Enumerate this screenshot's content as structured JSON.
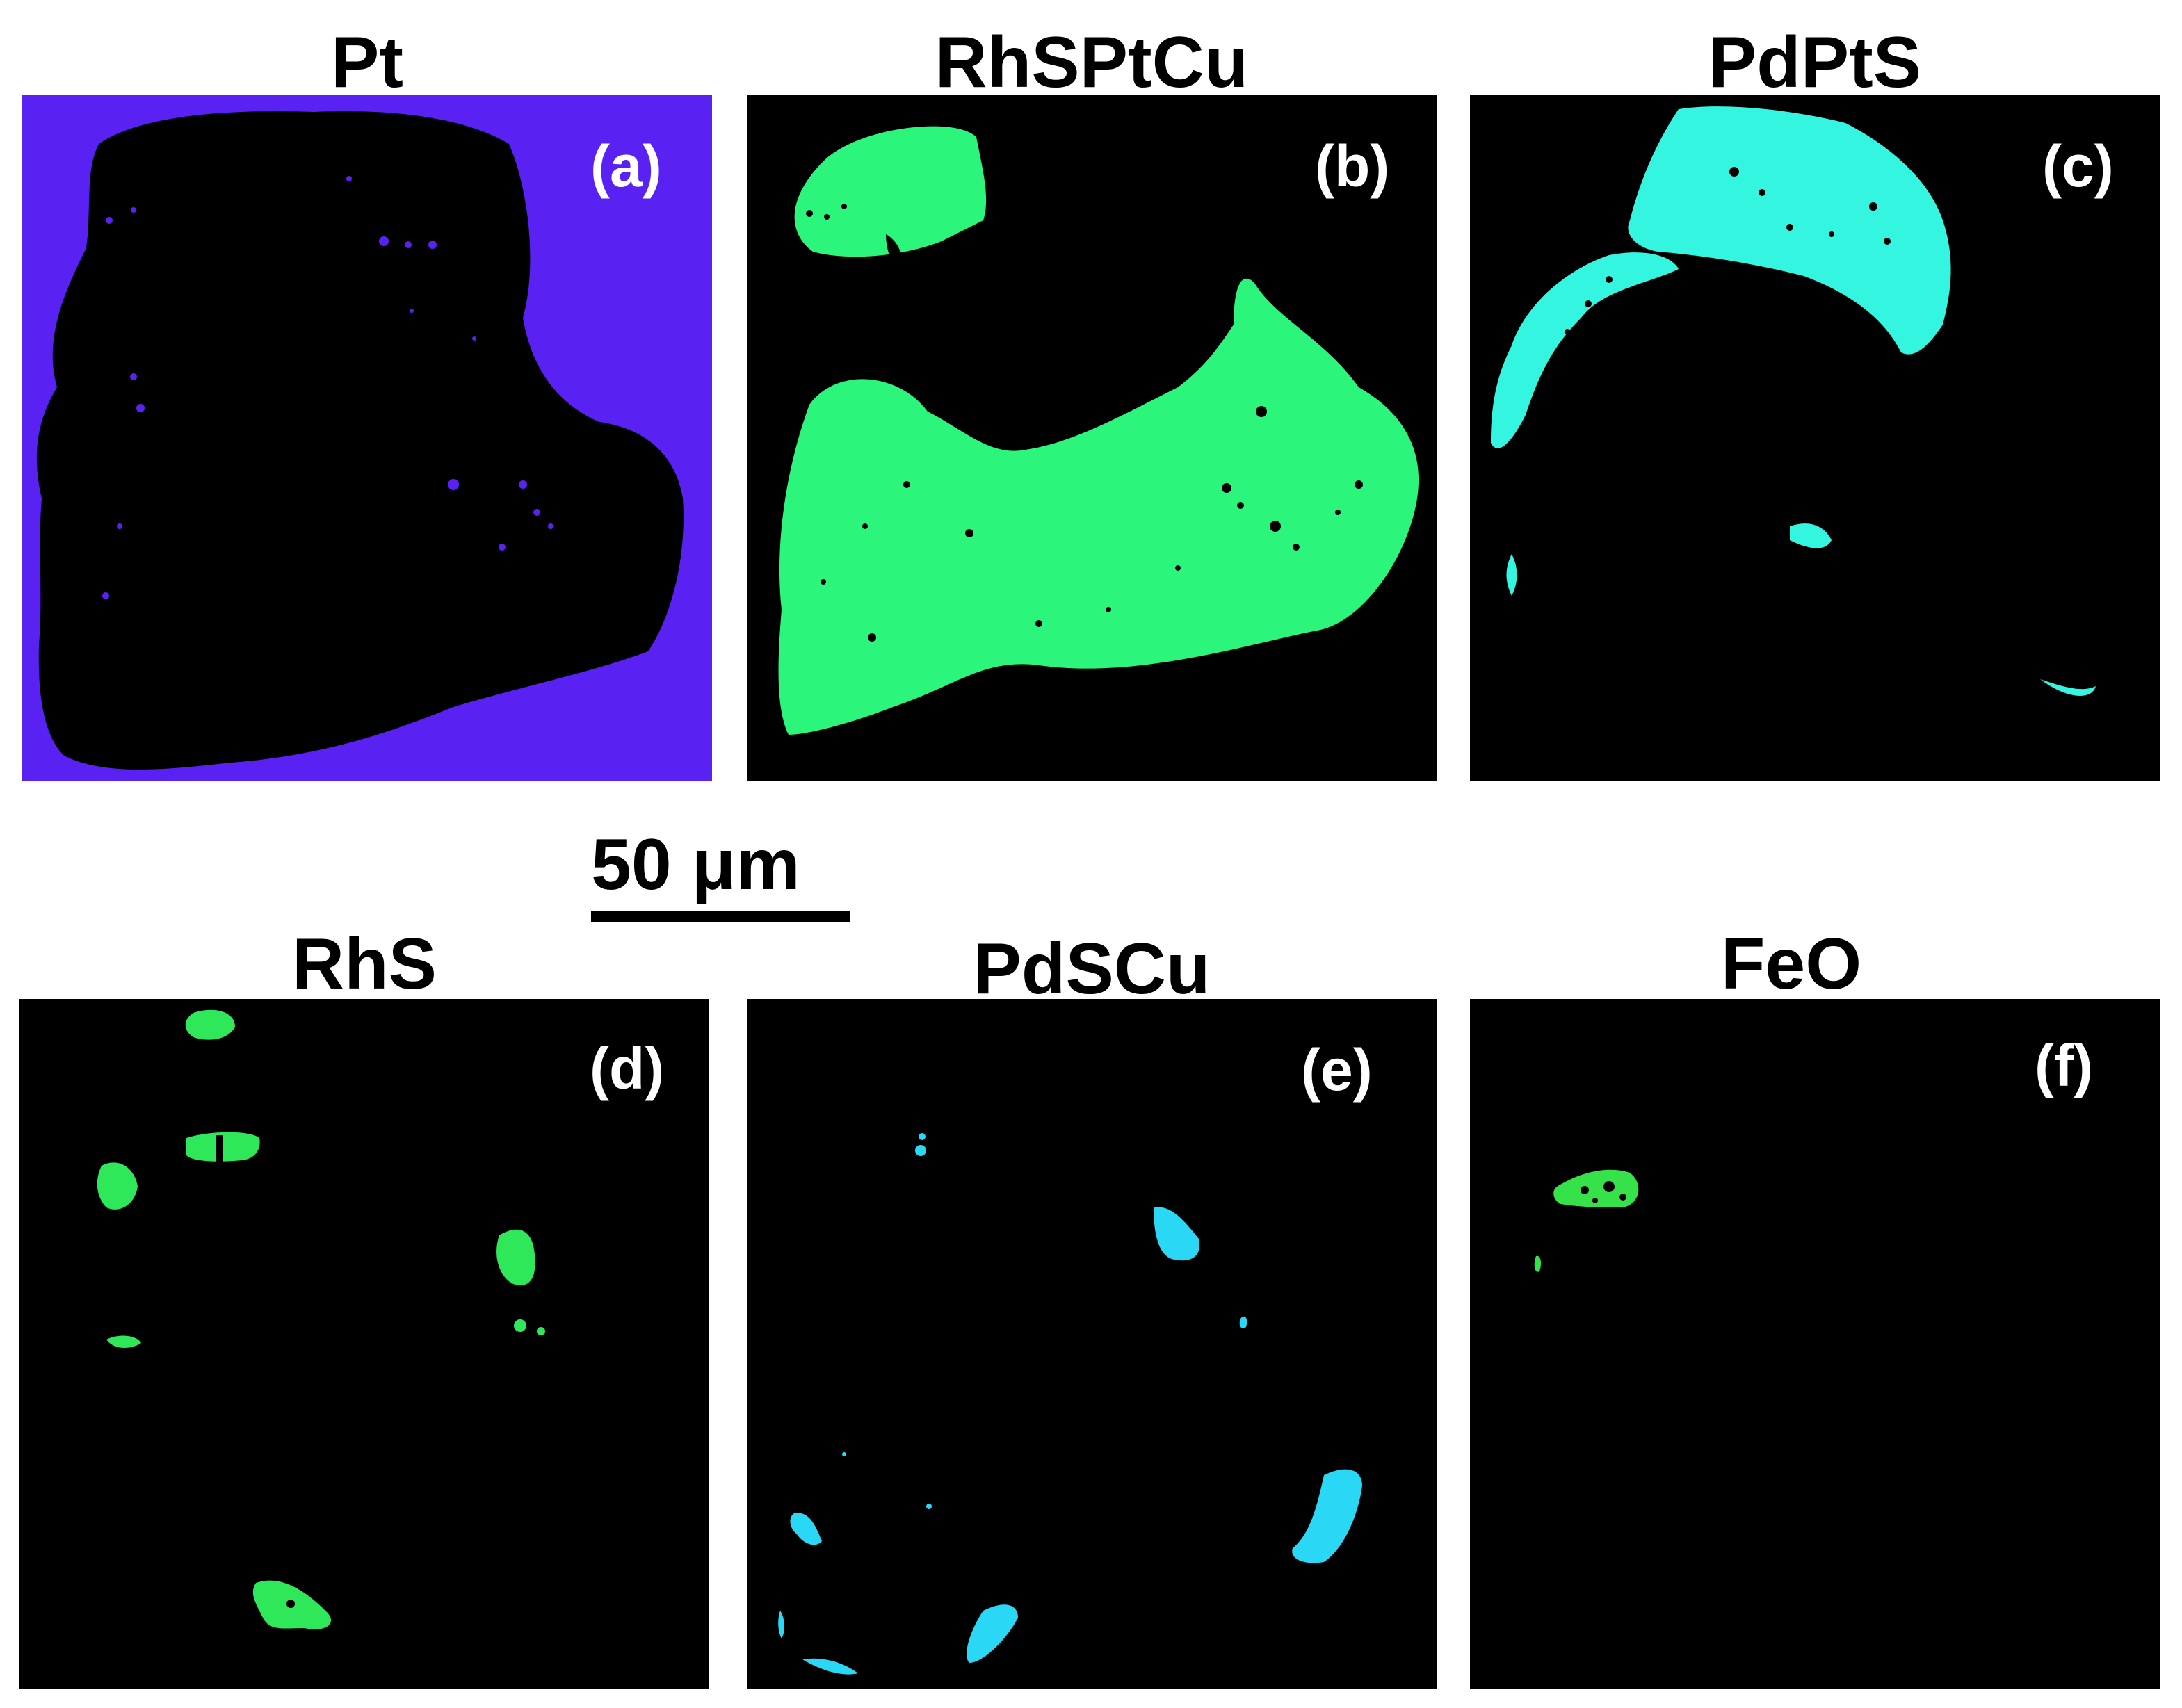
{
  "panels": [
    {
      "title": "Pt",
      "label": "(a)",
      "color": "#5a22f2"
    },
    {
      "title": "RhSPtCu",
      "label": "(b)",
      "color": "#2cf57c"
    },
    {
      "title": "PdPtS",
      "label": "(c)",
      "color": "#33f5e0"
    },
    {
      "title": "RhS",
      "label": "(d)",
      "color": "#2ee85a"
    },
    {
      "title": "PdSCu",
      "label": "(e)",
      "color": "#2ad7f5"
    },
    {
      "title": "FeO",
      "label": "(f)",
      "color": "#36e24a"
    }
  ],
  "scale_bar": {
    "label": "50 μm"
  }
}
